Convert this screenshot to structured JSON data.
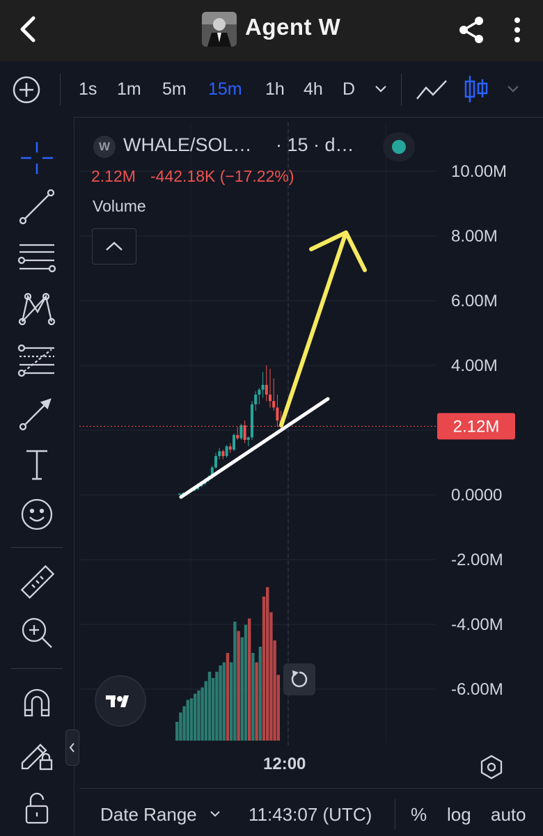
{
  "app": {
    "title": "Agent W"
  },
  "toolbar": {
    "timeframes": [
      "1s",
      "1m",
      "5m",
      "15m",
      "1h",
      "4h",
      "D"
    ],
    "active_timeframe": "15m"
  },
  "legend": {
    "symbol_letter": "W",
    "symbol": "WHALE/SOL…",
    "details": "· 15 · d…",
    "last": "2.12M",
    "change": "-442.18K (−17.22%)",
    "indicator": "Volume"
  },
  "price_axis": {
    "labels": [
      "10.00M",
      "8.00M",
      "6.00M",
      "4.00M",
      "2.12M",
      "0.0000",
      "-2.00M",
      "-4.00M",
      "-6.00M"
    ],
    "current": "2.12M"
  },
  "time_axis": {
    "label": "12:00"
  },
  "bottom": {
    "date_range": "Date Range",
    "clock": "11:43:07 (UTC)",
    "percent": "%",
    "log": "log",
    "auto": "auto"
  },
  "colors": {
    "up": "#26a69a",
    "down": "#ef5350",
    "accent": "#2962ff",
    "price_tag": "#e8474c",
    "arrow": "#f5e960"
  },
  "chart_data": {
    "type": "candlestick",
    "ylim": [
      -6000000,
      10000000
    ],
    "last_value": 2120000,
    "series_note": "market cap candles, 15m",
    "candles": [
      {
        "o": 0.02,
        "h": 0.05,
        "l": 0.0,
        "c": 0.04
      },
      {
        "o": 0.04,
        "h": 0.08,
        "l": 0.02,
        "c": 0.06
      },
      {
        "o": 0.06,
        "h": 0.1,
        "l": 0.05,
        "c": 0.09
      },
      {
        "o": 0.09,
        "h": 0.15,
        "l": 0.08,
        "c": 0.13
      },
      {
        "o": 0.13,
        "h": 0.2,
        "l": 0.11,
        "c": 0.18
      },
      {
        "o": 0.18,
        "h": 0.3,
        "l": 0.15,
        "c": 0.27
      },
      {
        "o": 0.27,
        "h": 0.4,
        "l": 0.24,
        "c": 0.35
      },
      {
        "o": 0.35,
        "h": 0.5,
        "l": 0.3,
        "c": 0.45
      },
      {
        "o": 0.45,
        "h": 0.6,
        "l": 0.4,
        "c": 0.55
      },
      {
        "o": 0.55,
        "h": 0.9,
        "l": 0.5,
        "c": 0.85
      },
      {
        "o": 0.85,
        "h": 1.3,
        "l": 0.8,
        "c": 1.2
      },
      {
        "o": 1.2,
        "h": 1.45,
        "l": 1.1,
        "c": 1.35
      },
      {
        "o": 1.35,
        "h": 1.4,
        "l": 1.1,
        "c": 1.2
      },
      {
        "o": 1.2,
        "h": 1.55,
        "l": 1.15,
        "c": 1.5
      },
      {
        "o": 1.5,
        "h": 1.6,
        "l": 1.3,
        "c": 1.4
      },
      {
        "o": 1.4,
        "h": 1.9,
        "l": 1.35,
        "c": 1.85
      },
      {
        "o": 1.85,
        "h": 2.1,
        "l": 1.7,
        "c": 1.75
      },
      {
        "o": 1.75,
        "h": 2.2,
        "l": 1.7,
        "c": 2.15
      },
      {
        "o": 2.15,
        "h": 2.3,
        "l": 1.6,
        "c": 1.7
      },
      {
        "o": 1.7,
        "h": 1.8,
        "l": 1.5,
        "c": 1.78
      },
      {
        "o": 1.78,
        "h": 2.9,
        "l": 1.7,
        "c": 2.8
      },
      {
        "o": 2.8,
        "h": 3.2,
        "l": 2.6,
        "c": 3.1
      },
      {
        "o": 3.1,
        "h": 3.3,
        "l": 2.8,
        "c": 3.25
      },
      {
        "o": 3.25,
        "h": 3.8,
        "l": 3.0,
        "c": 3.4
      },
      {
        "o": 3.4,
        "h": 4.0,
        "l": 2.9,
        "c": 3.1
      },
      {
        "o": 3.1,
        "h": 3.9,
        "l": 2.7,
        "c": 2.9
      },
      {
        "o": 2.9,
        "h": 3.6,
        "l": 2.6,
        "c": 2.7
      },
      {
        "o": 2.7,
        "h": 3.1,
        "l": 2.1,
        "c": 2.3
      },
      {
        "o": 2.3,
        "h": 2.6,
        "l": 2.05,
        "c": 2.12
      }
    ],
    "volume_scale": 1,
    "volumes": [
      {
        "v": 0.6,
        "up": true
      },
      {
        "v": 0.9,
        "up": true
      },
      {
        "v": 1.1,
        "up": true
      },
      {
        "v": 1.3,
        "up": true
      },
      {
        "v": 1.35,
        "up": true
      },
      {
        "v": 1.5,
        "up": true
      },
      {
        "v": 1.6,
        "up": true
      },
      {
        "v": 1.7,
        "up": true
      },
      {
        "v": 1.9,
        "up": true
      },
      {
        "v": 2.2,
        "up": true
      },
      {
        "v": 2.0,
        "up": true
      },
      {
        "v": 2.2,
        "up": true
      },
      {
        "v": 2.4,
        "up": true
      },
      {
        "v": 2.5,
        "up": true
      },
      {
        "v": 2.8,
        "up": false
      },
      {
        "v": 2.5,
        "up": true
      },
      {
        "v": 3.8,
        "up": true
      },
      {
        "v": 3.5,
        "up": false
      },
      {
        "v": 3.3,
        "up": true
      },
      {
        "v": 3.7,
        "up": true
      },
      {
        "v": 3.9,
        "up": false
      },
      {
        "v": 2.8,
        "up": true
      },
      {
        "v": 2.5,
        "up": false
      },
      {
        "v": 3.0,
        "up": true
      },
      {
        "v": 4.6,
        "up": false
      },
      {
        "v": 4.9,
        "up": false
      },
      {
        "v": 4.1,
        "up": false
      },
      {
        "v": 3.2,
        "up": false
      },
      {
        "v": 2.1,
        "up": false
      }
    ]
  }
}
